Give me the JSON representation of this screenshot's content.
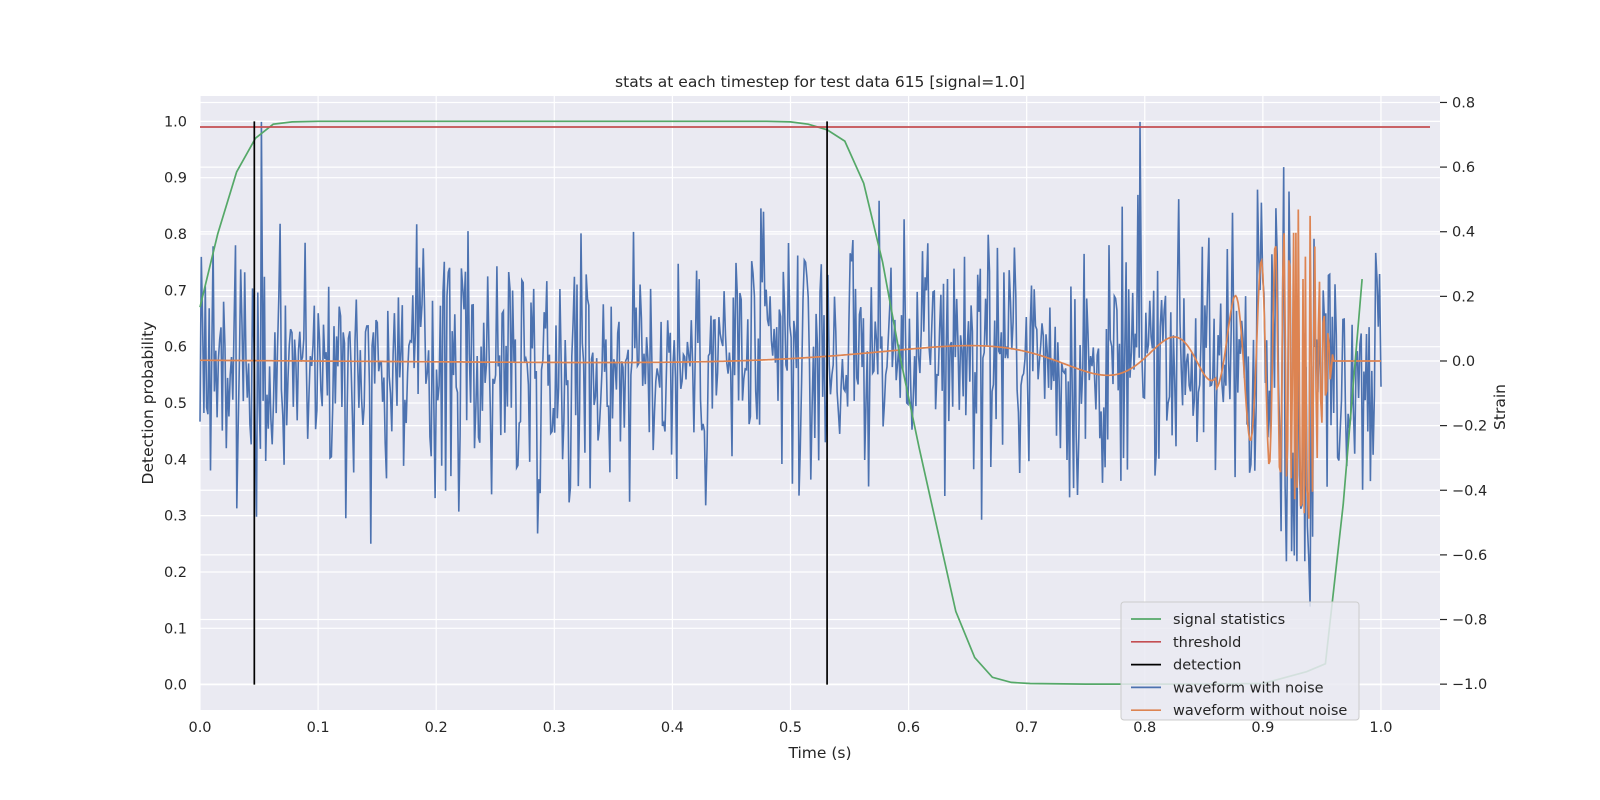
{
  "chart_data": {
    "type": "line",
    "title": "stats at each timestep for test data 615 [signal=1.0]",
    "xlabel": "Time (s)",
    "ylabel_left": "Detection probability",
    "ylabel_right": "Strain",
    "xlim": [
      0.0,
      1.05
    ],
    "ylim_left": [
      -0.045,
      1.045
    ],
    "ylim_right": [
      -1.08,
      0.82
    ],
    "x_ticks": [
      "0.0",
      "0.1",
      "0.2",
      "0.3",
      "0.4",
      "0.5",
      "0.6",
      "0.7",
      "0.8",
      "0.9",
      "1.0"
    ],
    "y_left_ticks": [
      "0.0",
      "0.1",
      "0.2",
      "0.3",
      "0.4",
      "0.5",
      "0.6",
      "0.7",
      "0.8",
      "0.9",
      "1.0"
    ],
    "y_right_ticks": [
      "−1.0",
      "−0.8",
      "−0.6",
      "−0.4",
      "−0.2",
      "0.0",
      "0.2",
      "0.4",
      "0.6",
      "0.8"
    ],
    "grid": true,
    "legend_position": "lower-right",
    "colors": {
      "signal": "#55a868",
      "threshold": "#c44e52",
      "detection": "#000000",
      "noisy": "#4c72b0",
      "clean": "#dd8452",
      "background": "#eaeaf2",
      "grid": "#ffffff"
    },
    "legend": [
      {
        "label": "signal statistics",
        "color": "#55a868"
      },
      {
        "label": "threshold",
        "color": "#c44e52"
      },
      {
        "label": "detection",
        "color": "#000000"
      },
      {
        "label": "waveform with noise",
        "color": "#4c72b0"
      },
      {
        "label": "waveform without noise",
        "color": "#dd8452"
      }
    ],
    "threshold": 0.99,
    "detections": [
      {
        "x": 0.046,
        "y0": 0.0,
        "y1": 1.0
      },
      {
        "x": 0.531,
        "y0": 0.0,
        "y1": 1.0
      }
    ],
    "signal_statistics": {
      "axis": "left",
      "x": [
        0.0,
        0.015,
        0.031,
        0.047,
        0.062,
        0.078,
        0.1,
        0.2,
        0.3,
        0.4,
        0.48,
        0.5,
        0.515,
        0.531,
        0.546,
        0.562,
        0.578,
        0.593,
        0.609,
        0.625,
        0.64,
        0.656,
        0.671,
        0.687,
        0.703,
        0.75,
        0.85,
        0.9,
        0.937,
        0.953,
        0.968,
        0.984
      ],
      "y": [
        0.67,
        0.8,
        0.91,
        0.97,
        0.995,
        0.999,
        1.0,
        1.0,
        1.0,
        1.0,
        1.0,
        0.999,
        0.995,
        0.985,
        0.965,
        0.89,
        0.75,
        0.58,
        0.42,
        0.27,
        0.13,
        0.048,
        0.013,
        0.004,
        0.002,
        0.001,
        0.001,
        0.002,
        0.023,
        0.037,
        0.32,
        0.72
      ]
    },
    "waveform_with_noise": {
      "axis": "right",
      "n_points": 900,
      "x_range": [
        0.0,
        1.0
      ],
      "y_range_approx": [
        -0.76,
        0.74
      ],
      "peaks": [
        {
          "x": 0.052,
          "y": 0.74
        },
        {
          "x": 0.796,
          "y": 0.74
        },
        {
          "x": 0.94,
          "y": -0.76
        }
      ]
    },
    "waveform_without_noise": {
      "axis": "right",
      "x_range": [
        0.0,
        1.0
      ],
      "description_points": [
        {
          "x": 0.0,
          "y": 0.015
        },
        {
          "x": 0.5,
          "y": 0.05
        },
        {
          "x": 0.8,
          "y": 0.1
        },
        {
          "x": 0.9,
          "y": -0.22
        },
        {
          "x": 0.93,
          "y": 0.5
        },
        {
          "x": 0.94,
          "y": -0.52
        },
        {
          "x": 0.96,
          "y": 0.0
        },
        {
          "x": 1.0,
          "y": 0.0
        }
      ]
    }
  }
}
